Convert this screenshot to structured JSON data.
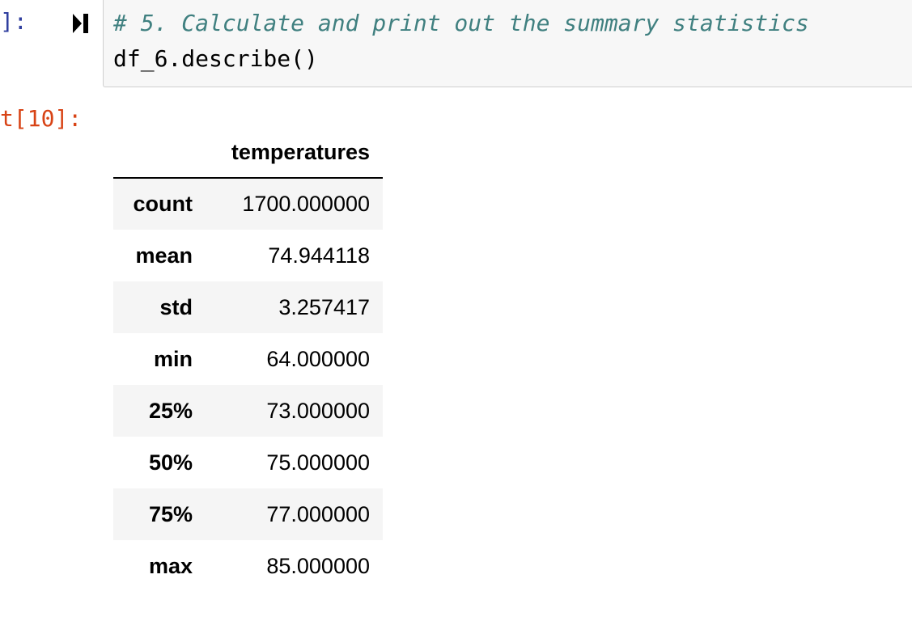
{
  "input_cell": {
    "prompt": "]:",
    "comment": "# 5. Calculate and print out the summary statistics",
    "code": "df_6.describe()"
  },
  "output_cell": {
    "prompt": "t[10]:",
    "table": {
      "columns": [
        "temperatures"
      ],
      "rows": [
        {
          "label": "count",
          "value": "1700.000000"
        },
        {
          "label": "mean",
          "value": "74.944118"
        },
        {
          "label": "std",
          "value": "3.257417"
        },
        {
          "label": "min",
          "value": "64.000000"
        },
        {
          "label": "25%",
          "value": "73.000000"
        },
        {
          "label": "50%",
          "value": "75.000000"
        },
        {
          "label": "75%",
          "value": "77.000000"
        },
        {
          "label": "max",
          "value": "85.000000"
        }
      ]
    }
  },
  "colors": {
    "in_prompt": "#303f9f",
    "out_prompt": "#d84315",
    "comment": "#408080",
    "input_bg": "#f7f7f7"
  },
  "icons": {
    "run": "run-cell-icon"
  }
}
